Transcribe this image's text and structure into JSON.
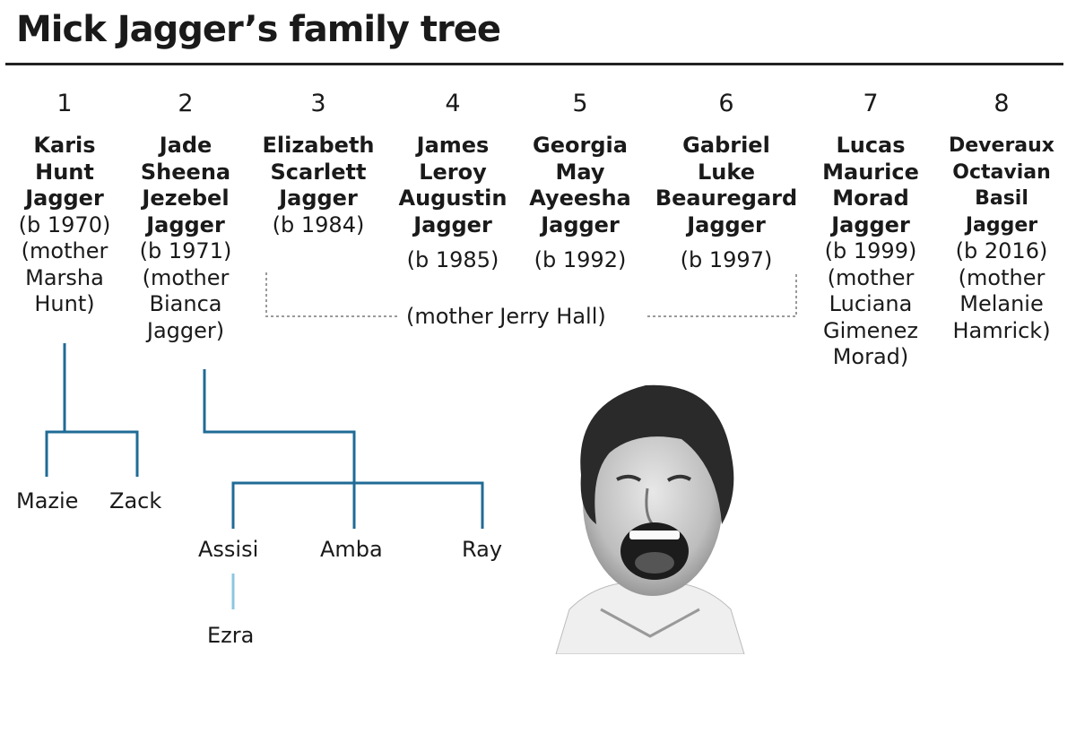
{
  "title": "Mick Jagger’s family tree",
  "children": [
    {
      "num": "1",
      "name": [
        "Karis",
        "Hunt",
        "Jagger"
      ],
      "info": [
        "(b 1970)",
        "(mother",
        "Marsha",
        "Hunt)"
      ]
    },
    {
      "num": "2",
      "name": [
        "Jade",
        "Sheena",
        "Jezebel",
        "Jagger"
      ],
      "info": [
        "(b 1971)",
        "(mother",
        "Bianca",
        "Jagger)"
      ]
    },
    {
      "num": "3",
      "name": [
        "Elizabeth",
        "Scarlett",
        "Jagger"
      ],
      "info": [
        "(b 1984)"
      ]
    },
    {
      "num": "4",
      "name": [
        "James",
        "Leroy",
        "Augustin",
        "Jagger"
      ],
      "info": [
        "(b 1985)"
      ]
    },
    {
      "num": "5",
      "name": [
        "Georgia",
        "May",
        "Ayeesha",
        "Jagger"
      ],
      "info": [
        "(b 1992)"
      ]
    },
    {
      "num": "6",
      "name": [
        "Gabriel",
        "Luke",
        "Beauregard",
        "Jagger"
      ],
      "info": [
        "(b 1997)"
      ]
    },
    {
      "num": "7",
      "name": [
        "Lucas",
        "Maurice",
        "Morad",
        "Jagger"
      ],
      "info": [
        "(b 1999)",
        "(mother",
        "Luciana",
        "Gimenez",
        "Morad)"
      ]
    },
    {
      "num": "8",
      "name": [
        "Deveraux",
        "Octavian",
        "Basil",
        "Jagger"
      ],
      "info": [
        "(b 2016)",
        "(mother",
        "Melanie",
        "Hamrick)"
      ]
    }
  ],
  "shared_mother": "(mother Jerry Hall)",
  "grandchildren": {
    "karis": [
      "Mazie",
      "Zack"
    ],
    "jade": [
      "Assisi",
      "Amba",
      "Ray"
    ]
  },
  "great_grandchildren": {
    "assisi": [
      "Ezra"
    ]
  },
  "colors": {
    "tree_line": "#1f6b96",
    "tree_line_light": "#8ec6e0",
    "dotted": "#9a9a9a",
    "rule": "#222222"
  }
}
